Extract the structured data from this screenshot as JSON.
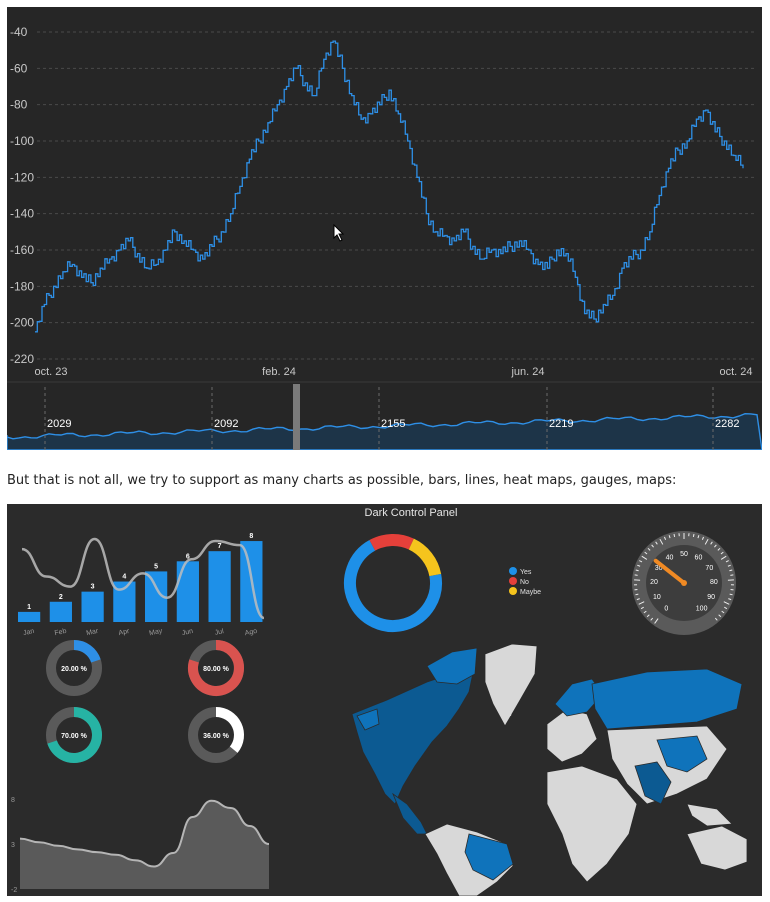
{
  "caption": "But that is not all, we try to support as many charts as possible, bars, lines, heat maps, gauges, maps:",
  "colors": {
    "line": "#2e8fe6",
    "accent_blue": "#1e90e8",
    "red": "#e5403a",
    "yellow": "#f5c41d",
    "teal": "#26b3a4",
    "map_blue": "#0f73bb",
    "map_gray": "#d8d8d8"
  },
  "chart_data": [
    {
      "type": "line",
      "ylabels": [
        "-40",
        "-60",
        "-80",
        "-100",
        "-120",
        "-140",
        "-160",
        "-180",
        "-200",
        "-220"
      ],
      "ylim": [
        -220,
        -40
      ],
      "xlabels": [
        "oct. 23",
        "feb. 24",
        "jun. 24",
        "oct. 24"
      ],
      "grid": true,
      "series": [
        {
          "values": [
            -205,
            -190,
            -180,
            -172,
            -168,
            -175,
            -178,
            -170,
            -165,
            -160,
            -155,
            -162,
            -170,
            -168,
            -160,
            -150,
            -155,
            -160,
            -165,
            -158,
            -150,
            -140,
            -125,
            -110,
            -100,
            -90,
            -80,
            -70,
            -60,
            -68,
            -75,
            -55,
            -45,
            -60,
            -75,
            -88,
            -85,
            -80,
            -72,
            -85,
            -100,
            -120,
            -140,
            -150,
            -152,
            -155,
            -150,
            -158,
            -165,
            -160,
            -162,
            -158,
            -155,
            -160,
            -168,
            -170,
            -160,
            -162,
            -175,
            -195,
            -198,
            -190,
            -185,
            -170,
            -165,
            -160,
            -150,
            -130,
            -115,
            -105,
            -100,
            -88,
            -83,
            -95,
            -100,
            -108,
            -115
          ]
        }
      ]
    },
    {
      "type": "area",
      "role": "navigator",
      "xlabels": [
        "2029",
        "2092",
        "2155",
        "2219",
        "2282"
      ]
    },
    {
      "type": "bar",
      "categories": [
        "Jan",
        "Feb",
        "Mar",
        "Apr",
        "May",
        "Jun",
        "Jul",
        "Ago"
      ],
      "values": [
        1,
        2,
        3,
        4,
        5,
        6,
        7,
        8
      ],
      "ylim": [
        0,
        8.5
      ],
      "overlay_line": [
        7.2,
        4.5,
        3.5,
        8.2,
        3.2,
        4.8,
        2.4,
        6.2,
        8.0,
        7.6,
        0.4
      ]
    },
    {
      "type": "pie",
      "title": "Dark Control Panel",
      "variant": "donut",
      "slices": [
        {
          "name": "Yes",
          "value": 70
        },
        {
          "name": "No",
          "value": 15
        },
        {
          "name": "Maybe",
          "value": 15
        }
      ],
      "legend": "right"
    },
    {
      "type": "gauge",
      "ticks": [
        "0",
        "10",
        "20",
        "30",
        "40",
        "50",
        "60",
        "70",
        "80",
        "90",
        "100"
      ],
      "value": 32
    },
    {
      "type": "pie",
      "variant": "progress-donut",
      "items": [
        {
          "label": "20.00 %",
          "value": 20,
          "color": "#2e8fe6"
        },
        {
          "label": "80.00 %",
          "value": 80,
          "color": "#d9534f"
        },
        {
          "label": "70.00 %",
          "value": 70,
          "color": "#26b3a4"
        },
        {
          "label": "36.00 %",
          "value": 36,
          "color": "#ffffff"
        }
      ]
    },
    {
      "type": "area",
      "ylabels": [
        "8",
        "3",
        "-2"
      ],
      "ylim": [
        -2,
        8
      ],
      "values": [
        3.6,
        3.2,
        2.8,
        2.4,
        2.1,
        1.8,
        1.2,
        0.5,
        2.0,
        6.0,
        7.8,
        7.0,
        5.0,
        3.0
      ]
    }
  ]
}
